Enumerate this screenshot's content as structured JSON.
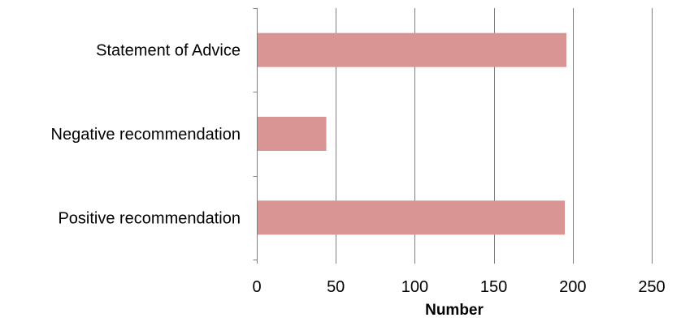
{
  "chart_data": {
    "type": "bar",
    "orientation": "horizontal",
    "categories": [
      "Statement of Advice",
      "Negative recommendation",
      "Positive recommendation"
    ],
    "values": [
      196,
      44,
      195
    ],
    "xlabel": "Number",
    "ylabel": "",
    "xlim": [
      0,
      250
    ],
    "xticks": [
      0,
      50,
      100,
      150,
      200,
      250
    ],
    "grid": "vertical",
    "legend": "none",
    "bar_color": "#d99594",
    "grid_color": "#808080"
  }
}
